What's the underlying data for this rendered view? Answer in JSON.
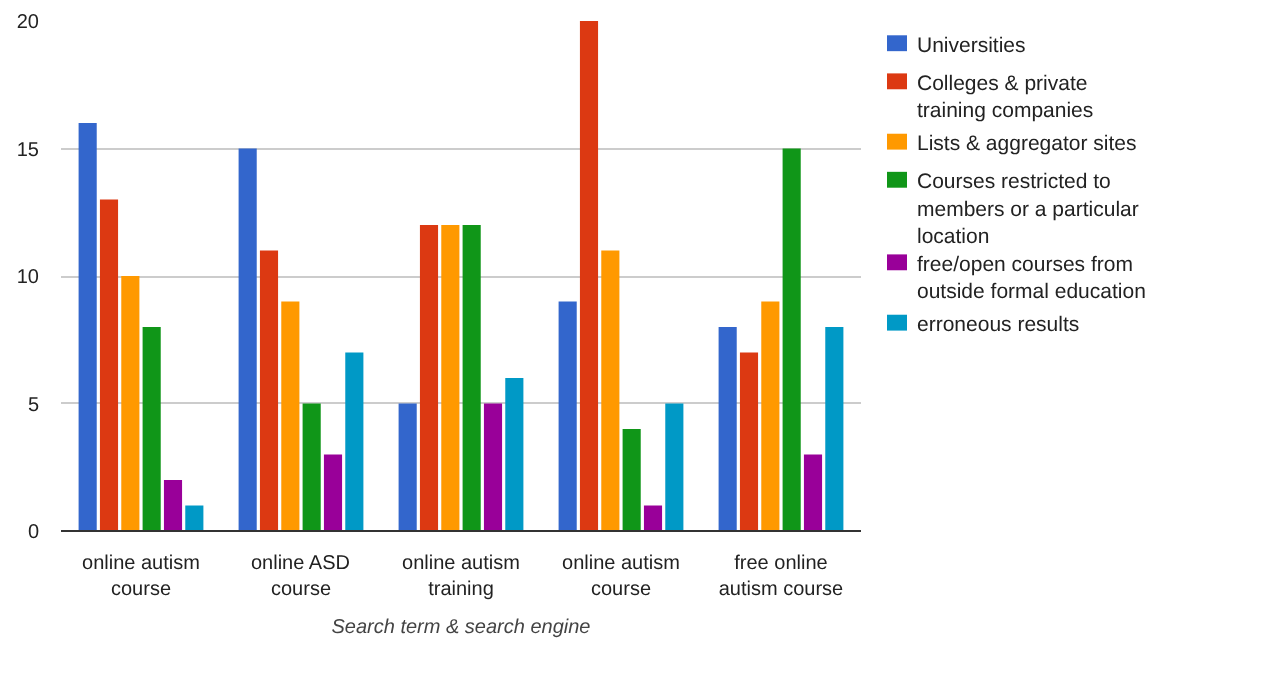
{
  "chart_data": {
    "type": "bar",
    "xlabel": "Search term & search engine",
    "categories": [
      "online autism course",
      "online ASD course",
      "online autism training",
      "online autism course",
      "free online autism course"
    ],
    "series": [
      {
        "name": "Universities",
        "color": "#3366cc",
        "values": [
          16,
          15,
          5,
          9,
          8
        ]
      },
      {
        "name": "Colleges & private training companies",
        "color": "#dc3912",
        "values": [
          13,
          11,
          12,
          20,
          7
        ]
      },
      {
        "name": "Lists & aggregator sites",
        "color": "#ff9900",
        "values": [
          10,
          9,
          12,
          11,
          9
        ]
      },
      {
        "name": "Courses restricted to members or a particular location",
        "color": "#109618",
        "values": [
          8,
          5,
          12,
          4,
          15
        ]
      },
      {
        "name": "free/open courses from outside formal education",
        "color": "#990099",
        "values": [
          2,
          3,
          5,
          1,
          3
        ]
      },
      {
        "name": "erroneous results",
        "color": "#0099c6",
        "values": [
          1,
          7,
          6,
          5,
          8
        ]
      }
    ],
    "ylim": [
      0,
      20
    ],
    "yticks": [
      0,
      5,
      10,
      15,
      20
    ],
    "grid": "y",
    "legend": "right"
  }
}
